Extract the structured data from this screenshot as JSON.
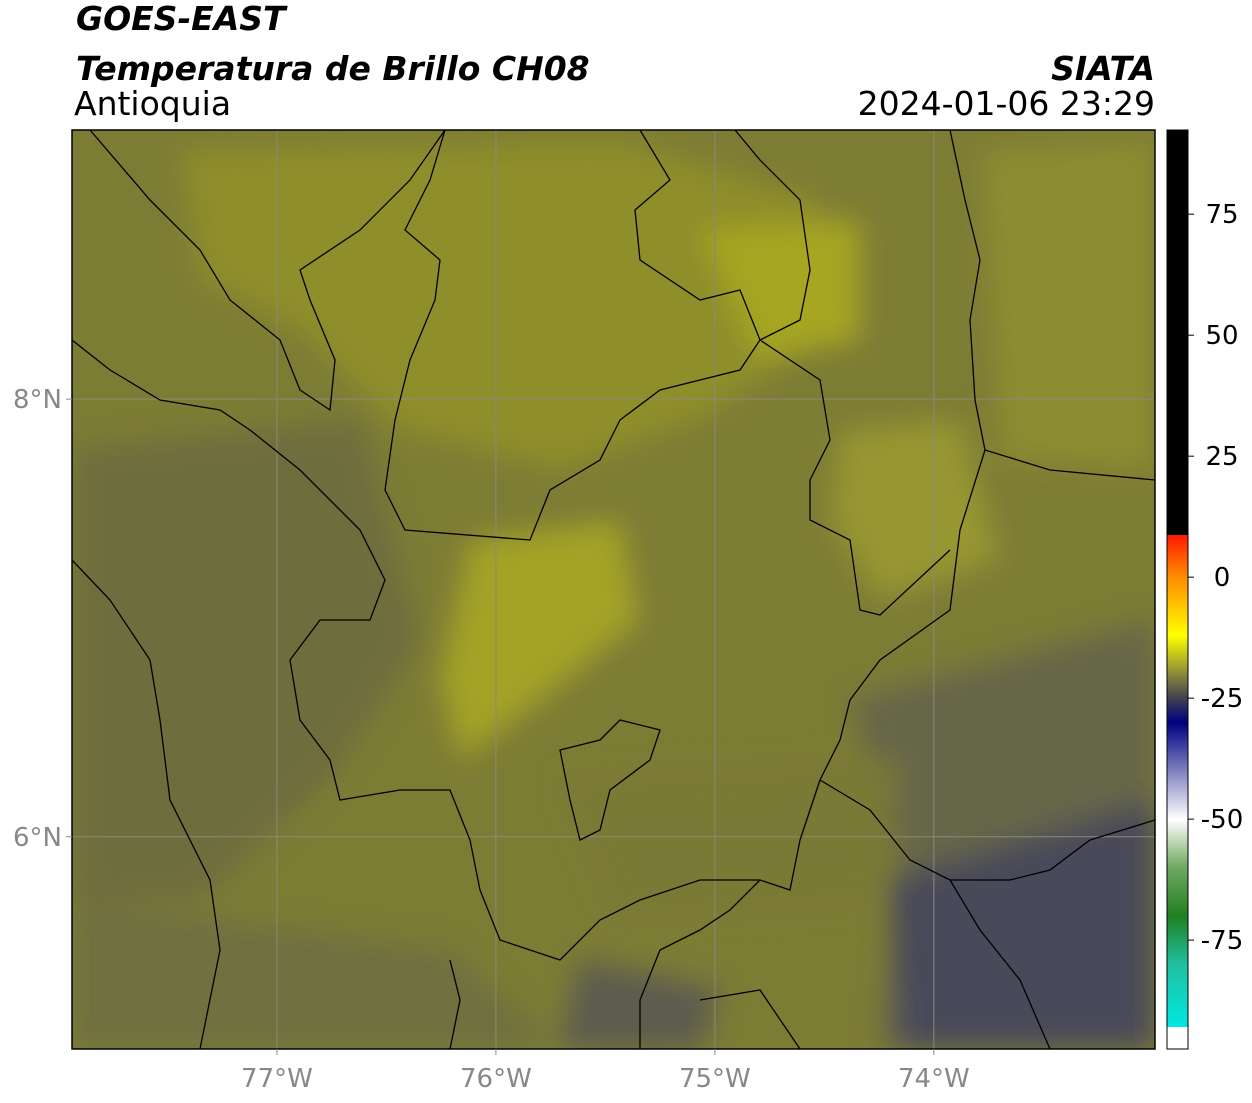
{
  "map": {
    "title": "GOES-EAST",
    "subtitle": "Temperatura de Brillo CH08",
    "region": "Antioquia",
    "source": "SIATA",
    "timestamp": "2024-01-06 23:29",
    "xlim": [
      -77.936,
      -72.99
    ],
    "ylim": [
      5.03,
      9.23
    ],
    "xticks": [
      {
        "value": -77,
        "label": "77°W"
      },
      {
        "value": -76,
        "label": "76°W"
      },
      {
        "value": -75,
        "label": "75°W"
      },
      {
        "value": -74,
        "label": "74°W"
      }
    ],
    "yticks": [
      {
        "value": 6,
        "label": "6°N"
      },
      {
        "value": 8,
        "label": "8°N"
      }
    ],
    "grid": true,
    "colorbar": {
      "lim": [
        -97.5,
        92.4
      ],
      "ticks": [
        -75,
        -50,
        -25,
        0,
        25,
        50,
        75
      ],
      "stops": [
        {
          "value": 92.4,
          "color": "#000000"
        },
        {
          "value": 8.7,
          "color": "#000000"
        },
        {
          "value": 8.7,
          "color": "#ff1a00"
        },
        {
          "value": 0,
          "color": "#ff8c00"
        },
        {
          "value": -12,
          "color": "#ffff00"
        },
        {
          "value": -20,
          "color": "#8a8a3a"
        },
        {
          "value": -25,
          "color": "#404050"
        },
        {
          "value": -30,
          "color": "#000080"
        },
        {
          "value": -40,
          "color": "#8080c0"
        },
        {
          "value": -50,
          "color": "#ffffff"
        },
        {
          "value": -60,
          "color": "#70a860"
        },
        {
          "value": -70,
          "color": "#208020"
        },
        {
          "value": -80,
          "color": "#20c0a0"
        },
        {
          "value": -93,
          "color": "#00e8e0"
        },
        {
          "value": -93,
          "color": "#ffffff"
        },
        {
          "value": -97.5,
          "color": "#ffffff"
        }
      ]
    }
  }
}
